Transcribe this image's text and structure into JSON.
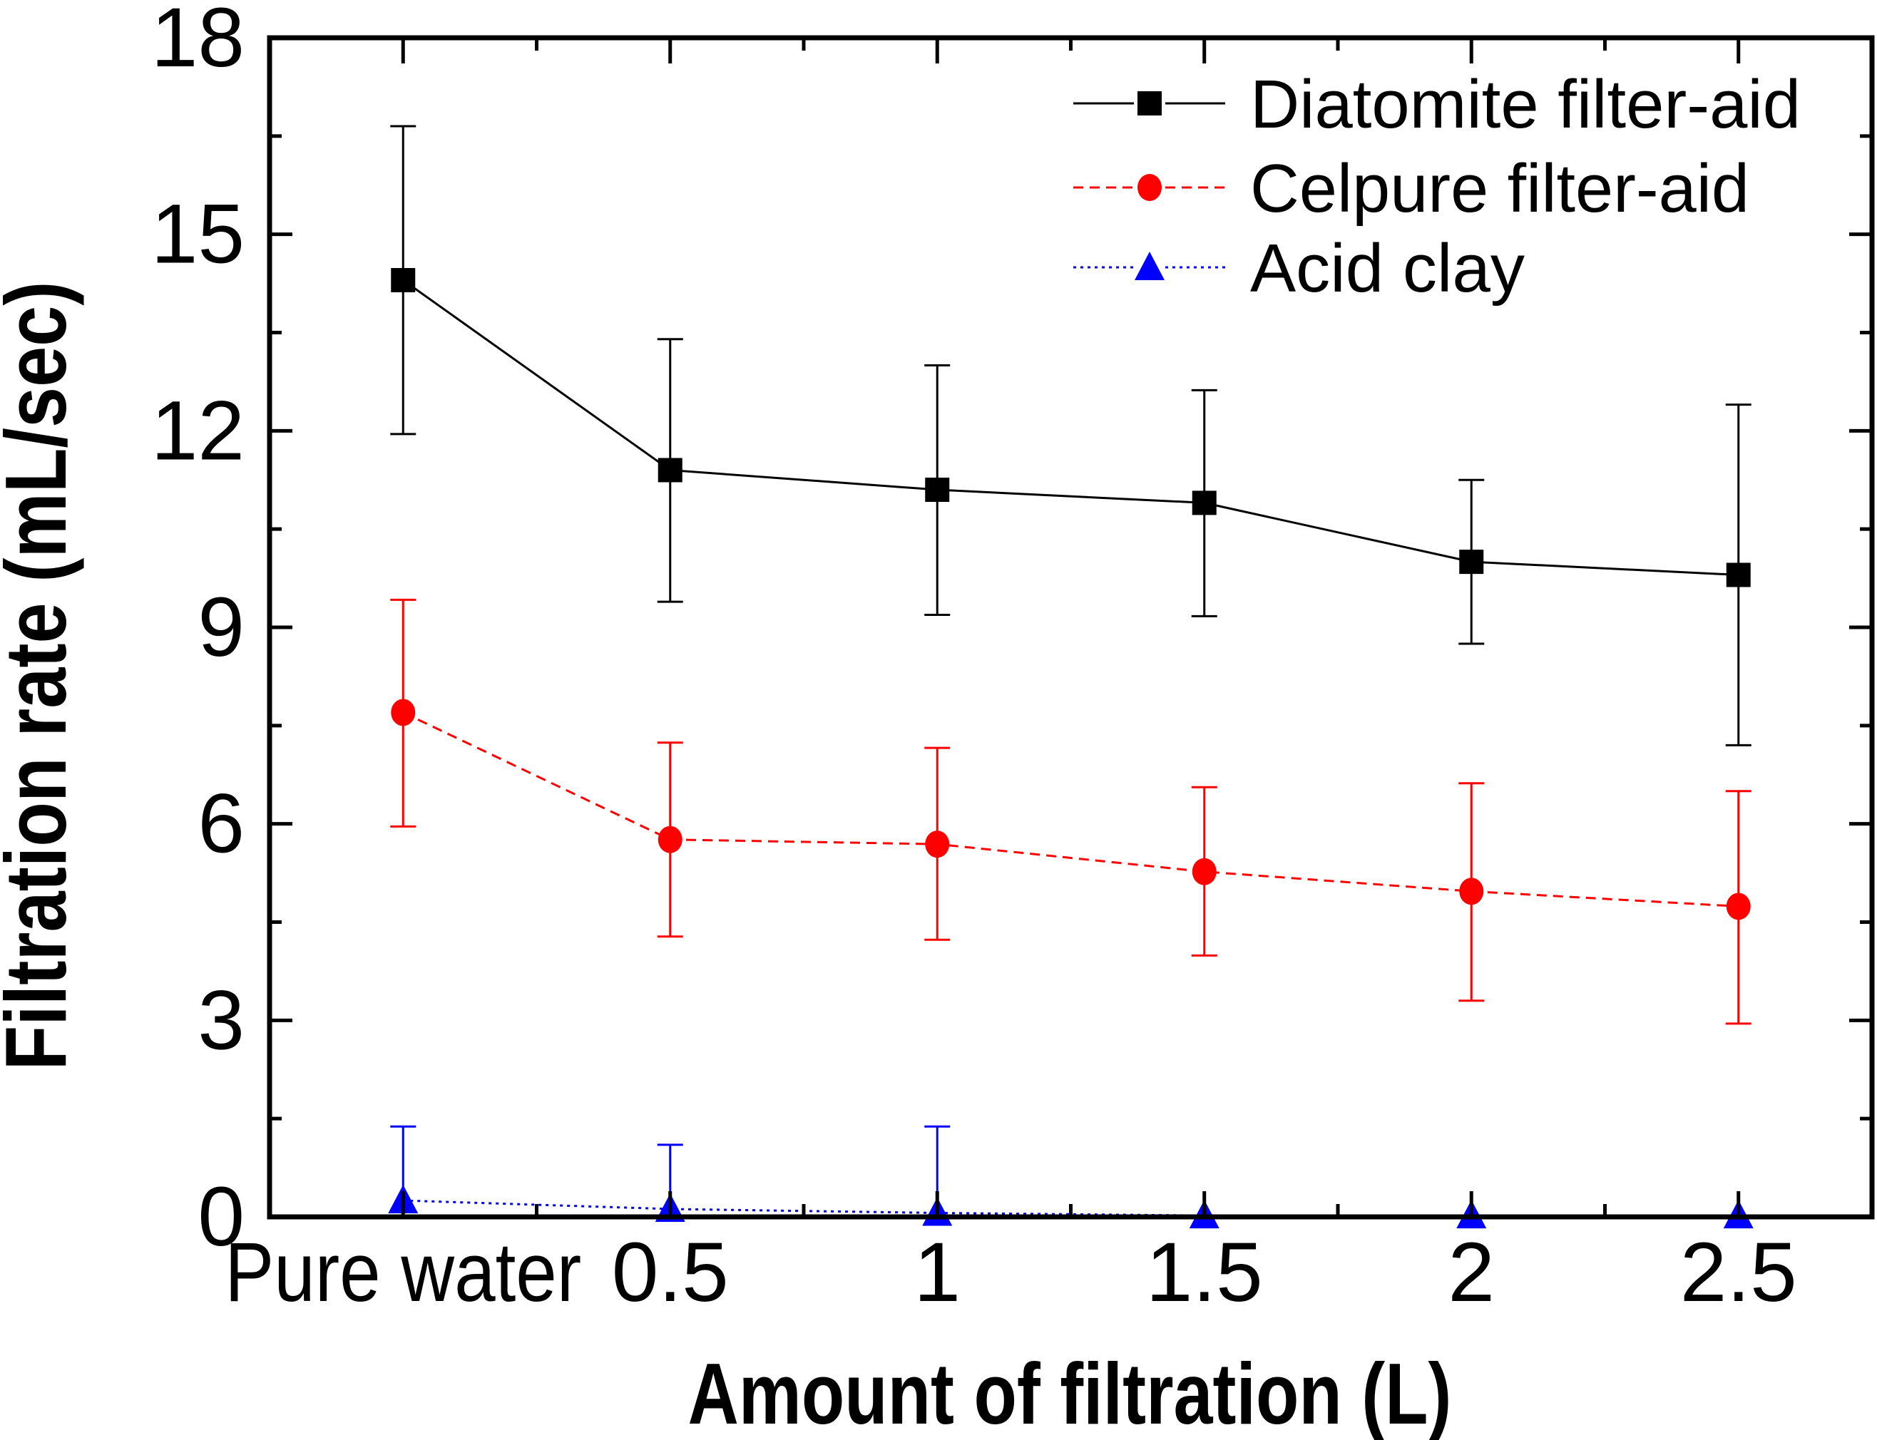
{
  "chart_data": {
    "type": "line",
    "title": "",
    "xlabel": "Amount of filtration (L)",
    "ylabel": "Filtration rate (mL/sec)",
    "categories": [
      "Pure water",
      "0.5",
      "1",
      "1.5",
      "2",
      "2.5"
    ],
    "ylim": [
      0,
      18
    ],
    "yticks": [
      0,
      3,
      6,
      9,
      12,
      15,
      18
    ],
    "grid": false,
    "legend_position": "top-right",
    "error_bars": true,
    "series": [
      {
        "name": "Diatomite filter-aid",
        "color": "#000000",
        "marker": "square",
        "line_style": "solid",
        "values": [
          14.3,
          11.4,
          11.1,
          10.9,
          10.0,
          9.8
        ],
        "err_upper": [
          16.65,
          13.4,
          13.0,
          12.62,
          11.25,
          12.4
        ],
        "err_lower": [
          11.95,
          9.39,
          9.19,
          9.17,
          8.75,
          7.2
        ]
      },
      {
        "name": "Celpure filter-aid",
        "color": "#ff0000",
        "marker": "circle",
        "line_style": "dashed",
        "values": [
          7.7,
          5.76,
          5.69,
          5.27,
          4.97,
          4.74
        ],
        "err_upper": [
          9.42,
          7.24,
          7.16,
          6.56,
          6.62,
          6.5
        ],
        "err_lower": [
          5.96,
          4.28,
          4.23,
          3.99,
          3.3,
          2.95
        ]
      },
      {
        "name": "Acid clay",
        "color": "#0000ff",
        "marker": "triangle",
        "line_style": "dotted",
        "values": [
          0.25,
          0.12,
          0.06,
          0.02,
          0.02,
          0.02
        ],
        "err_upper": [
          1.38,
          1.1,
          1.38,
          null,
          null,
          null
        ],
        "err_lower": [
          null,
          null,
          null,
          null,
          null,
          null
        ]
      }
    ]
  }
}
